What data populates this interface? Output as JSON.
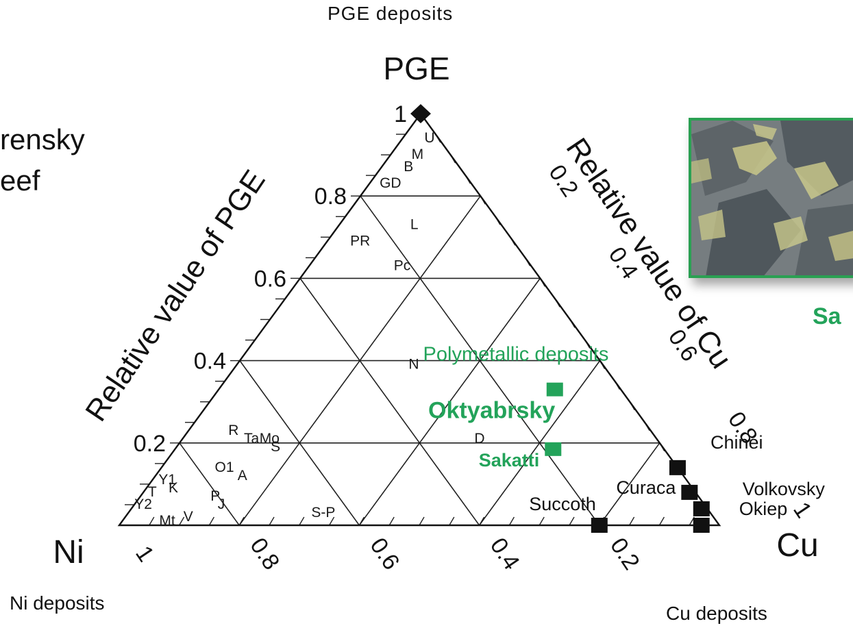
{
  "page": {
    "top_caption": "PGE deposits",
    "left_cut_text": [
      "rensky",
      "eef"
    ],
    "photo_label_cut": "Sa",
    "corner_captions": {
      "ni": "Ni deposits",
      "cu": "Cu deposits"
    }
  },
  "colors": {
    "green": "#23a35a",
    "axis": "#111111",
    "marker_black": "#111111"
  },
  "chart_data": {
    "type": "ternary",
    "apex_labels": {
      "top": "PGE",
      "left": "Ni",
      "right": "Cu"
    },
    "axis_titles": {
      "left": "Relative value of PGE",
      "right": "Relative value of Cu"
    },
    "pge_ticks": [
      "1",
      "0.8",
      "0.6",
      "0.4",
      "0.2"
    ],
    "cu_right_ticks": [
      "0.2",
      "0.4",
      "0.6",
      "0.8",
      "1"
    ],
    "bottom_ticks": [
      "1",
      "0.8",
      "0.6",
      "0.4",
      "0.2"
    ],
    "grid_step": 0.2,
    "minor_tick_step": 0.05,
    "region_labels": [
      {
        "text": "Polymetallic deposits",
        "pge": 0.4,
        "cu": 0.46,
        "color": "green"
      },
      {
        "text": "Oktyabrsky",
        "pge": 0.26,
        "cu": 0.49,
        "color": "green",
        "bold": true
      }
    ],
    "green_points": [
      {
        "name": "Oktyabrsky",
        "pge": 0.33,
        "cu": 0.56
      },
      {
        "name": "Sakatti",
        "label": "Sakatti",
        "pge": 0.185,
        "cu": 0.63
      }
    ],
    "black_points": [
      {
        "name": "PGE apex",
        "pge": 1.0,
        "cu": 0.0,
        "shape": "diamond"
      },
      {
        "name": "Chinei",
        "label": "Chinei",
        "pge": 0.14,
        "cu": 0.86
      },
      {
        "name": "Curaca",
        "label": "Curaca",
        "pge": 0.08,
        "cu": 0.91
      },
      {
        "name": "Volkovsky",
        "label": "Volkovsky",
        "pge": 0.04,
        "cu": 0.95
      },
      {
        "name": "Okiep",
        "label": "Okiep",
        "pge": 0.0,
        "cu": 0.97
      },
      {
        "name": "Succoth",
        "label": "Succoth",
        "pge": 0.0,
        "cu": 0.8
      }
    ],
    "deposit_codes": [
      {
        "text": "U",
        "pge": 0.93,
        "cu": 0.05
      },
      {
        "text": "M",
        "pge": 0.89,
        "cu": 0.05
      },
      {
        "text": "B",
        "pge": 0.86,
        "cu": 0.05
      },
      {
        "text": "GD",
        "pge": 0.82,
        "cu": 0.04
      },
      {
        "text": "L",
        "pge": 0.72,
        "cu": 0.13
      },
      {
        "text": "PR",
        "pge": 0.68,
        "cu": 0.06
      },
      {
        "text": "Pc",
        "pge": 0.62,
        "cu": 0.16
      },
      {
        "text": "N",
        "pge": 0.38,
        "cu": 0.3
      },
      {
        "text": "D",
        "pge": 0.2,
        "cu": 0.5
      },
      {
        "text": "R",
        "pge": 0.22,
        "cu": 0.08
      },
      {
        "text": "Ta",
        "pge": 0.2,
        "cu": 0.12
      },
      {
        "text": "Mo",
        "pge": 0.2,
        "cu": 0.15
      },
      {
        "text": "S",
        "pge": 0.18,
        "cu": 0.17
      },
      {
        "text": "O1",
        "pge": 0.13,
        "cu": 0.11
      },
      {
        "text": "A",
        "pge": 0.11,
        "cu": 0.15
      },
      {
        "text": "P",
        "pge": 0.06,
        "cu": 0.13
      },
      {
        "text": "J",
        "pge": 0.04,
        "cu": 0.15
      },
      {
        "text": "Y1",
        "pge": 0.1,
        "cu": 0.03
      },
      {
        "text": "T",
        "pge": 0.07,
        "cu": 0.02
      },
      {
        "text": "K",
        "pge": 0.08,
        "cu": 0.05
      },
      {
        "text": "Y2",
        "pge": 0.04,
        "cu": 0.02
      },
      {
        "text": "Mt",
        "pge": 0.0,
        "cu": 0.08
      },
      {
        "text": "V",
        "pge": 0.01,
        "cu": 0.11
      },
      {
        "text": "S-P",
        "pge": 0.02,
        "cu": 0.33
      }
    ]
  }
}
